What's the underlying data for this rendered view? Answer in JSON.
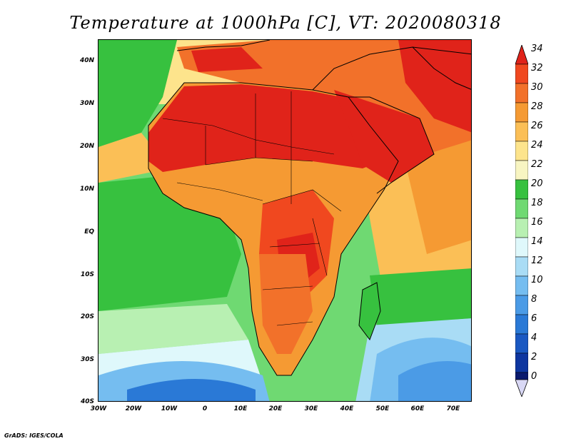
{
  "title": "Temperature at 1000hPa [C], VT: 2020080318",
  "credit": "GrADS: IGES/COLA",
  "map": {
    "region": "Africa",
    "y_ticks": [
      "40N",
      "30N",
      "20N",
      "10N",
      "EQ",
      "10S",
      "20S",
      "30S",
      "40S"
    ],
    "x_ticks": [
      "30W",
      "20W",
      "10W",
      "0",
      "10E",
      "20E",
      "30E",
      "40E",
      "50E",
      "60E",
      "70E"
    ]
  },
  "colorbar": {
    "labels": [
      "34",
      "32",
      "30",
      "28",
      "26",
      "24",
      "22",
      "20",
      "18",
      "16",
      "14",
      "12",
      "10",
      "8",
      "6",
      "4",
      "2",
      "0"
    ],
    "colors": {
      "c34": "#e0231a",
      "c32": "#f0481f",
      "c30": "#f2712a",
      "c28": "#f59a33",
      "c26": "#fbbf56",
      "c24": "#fde48c",
      "c22": "#f8f5c2",
      "c20": "#37c13f",
      "c18": "#6fd972",
      "c16": "#b8f0b2",
      "c14": "#dff8fb",
      "c12": "#a9dcf5",
      "c10": "#75bdf0",
      "c8": "#4b9be6",
      "c6": "#2a79d6",
      "c4": "#1a58c2",
      "c2": "#0e36a0",
      "c0": "#0a1a6e"
    }
  }
}
